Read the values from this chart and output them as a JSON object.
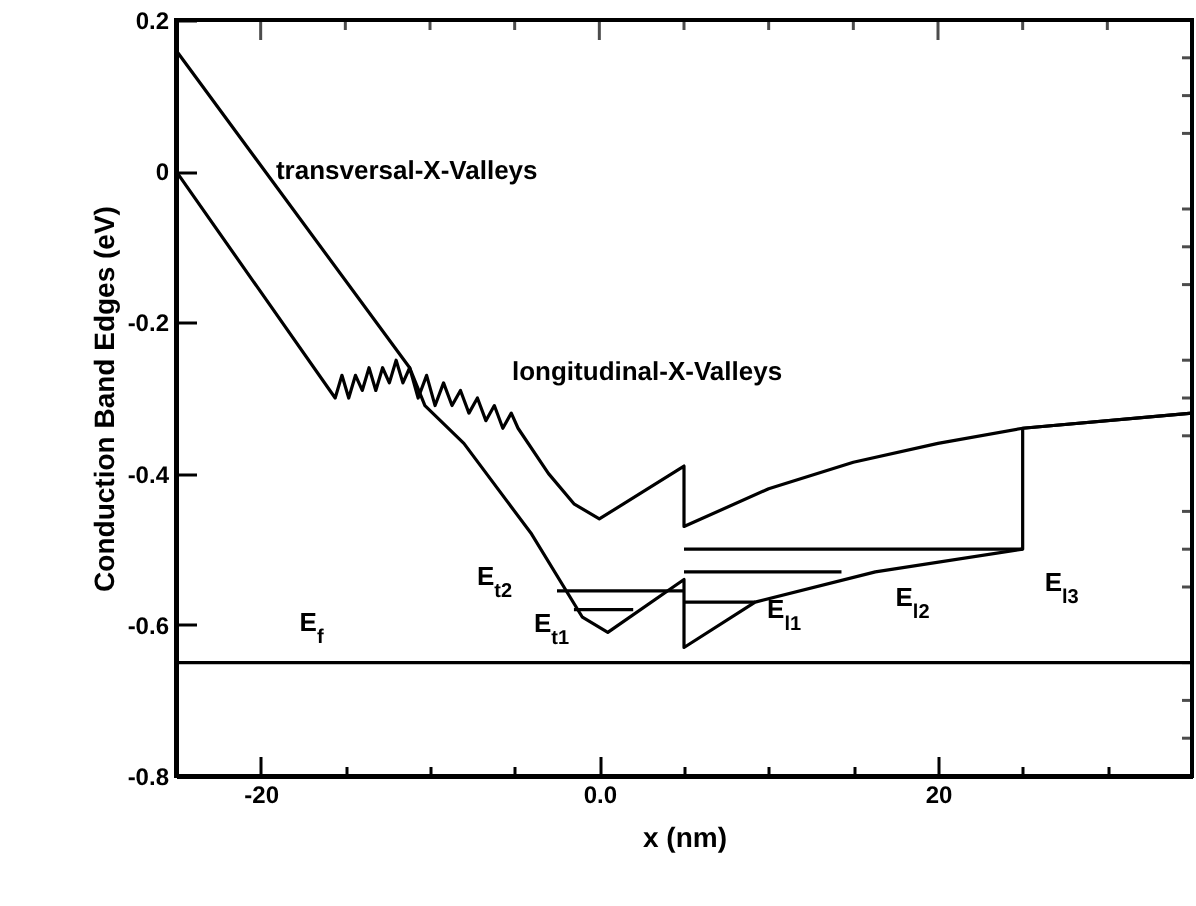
{
  "chart_data": {
    "type": "line",
    "xlabel": "x (nm)",
    "ylabel": "Conduction Band Edges (eV)",
    "xlim": [
      -25,
      35
    ],
    "ylim": [
      -0.8,
      0.2
    ],
    "xticks": [
      {
        "value": -25,
        "label": null
      },
      {
        "value": -20,
        "label": "-20"
      },
      {
        "value": -15,
        "label": null
      },
      {
        "value": -10,
        "label": null
      },
      {
        "value": -5,
        "label": null
      },
      {
        "value": 0,
        "label": "0.0"
      },
      {
        "value": 5,
        "label": null
      },
      {
        "value": 10,
        "label": null
      },
      {
        "value": 15,
        "label": null
      },
      {
        "value": 20,
        "label": "20"
      },
      {
        "value": 25,
        "label": null
      },
      {
        "value": 30,
        "label": null
      }
    ],
    "yticks": [
      {
        "value": -0.8,
        "label": "-0.8"
      },
      {
        "value": -0.75,
        "label": null
      },
      {
        "value": -0.7,
        "label": null
      },
      {
        "value": -0.65,
        "label": null
      },
      {
        "value": -0.6,
        "label": "-0.6"
      },
      {
        "value": -0.55,
        "label": null
      },
      {
        "value": -0.5,
        "label": null
      },
      {
        "value": -0.45,
        "label": null
      },
      {
        "value": -0.4,
        "label": "-0.4"
      },
      {
        "value": -0.35,
        "label": null
      },
      {
        "value": -0.3,
        "label": null
      },
      {
        "value": -0.25,
        "label": null
      },
      {
        "value": -0.2,
        "label": "-0.2"
      },
      {
        "value": -0.15,
        "label": null
      },
      {
        "value": -0.1,
        "label": null
      },
      {
        "value": -0.05,
        "label": null
      },
      {
        "value": 0,
        "label": "0"
      },
      {
        "value": 0.05,
        "label": null
      },
      {
        "value": 0.1,
        "label": null
      },
      {
        "value": 0.15,
        "label": null
      },
      {
        "value": 0.2,
        "label": "0.2"
      }
    ],
    "grid": false,
    "line_style": "solid",
    "marker": "none",
    "series": [
      {
        "color": "#000000",
        "x": [
          -25,
          -11.2,
          -10.3,
          -8,
          -4,
          -1,
          0.5,
          5,
          5,
          9.2,
          16.3,
          25,
          25,
          35
        ],
        "values": [
          0.16,
          -0.26,
          -0.31,
          -0.36,
          -0.48,
          -0.59,
          -0.61,
          -0.54,
          -0.63,
          -0.57,
          -0.53,
          -0.5,
          -0.34,
          -0.32
        ]
      },
      {
        "color": "#000000",
        "x": [
          -25,
          -15.6,
          -15.2,
          -14.8,
          -14.4,
          -14.0,
          -13.6,
          -13.2,
          -12.8,
          -12.4,
          -12.0,
          -11.6,
          -11.2,
          -10.7,
          -10.2,
          -9.7,
          -9.2,
          -8.7,
          -8.2,
          -7.7,
          -7.2,
          -6.7,
          -6.2,
          -5.7,
          -5.2,
          -4.8,
          -3,
          -1.5,
          0,
          5,
          5,
          10,
          15,
          20,
          25,
          35
        ],
        "values": [
          0,
          -0.3,
          -0.27,
          -0.3,
          -0.27,
          -0.29,
          -0.26,
          -0.29,
          -0.26,
          -0.28,
          -0.25,
          -0.28,
          -0.26,
          -0.3,
          -0.27,
          -0.31,
          -0.28,
          -0.31,
          -0.29,
          -0.32,
          -0.3,
          -0.33,
          -0.31,
          -0.34,
          -0.32,
          -0.34,
          -0.4,
          -0.44,
          -0.46,
          -0.39,
          -0.47,
          -0.42,
          -0.385,
          -0.36,
          -0.34,
          -0.32
        ]
      },
      {
        "color": "#000000",
        "x": [
          -2.5,
          5
        ],
        "values": [
          -0.555,
          -0.555
        ]
      },
      {
        "color": "#000000",
        "x": [
          -1.5,
          2
        ],
        "values": [
          -0.58,
          -0.58
        ]
      },
      {
        "color": "#000000",
        "x": [
          5,
          9.2
        ],
        "values": [
          -0.57,
          -0.57
        ]
      },
      {
        "color": "#000000",
        "x": [
          5,
          14.3
        ],
        "values": [
          -0.53,
          -0.53
        ]
      },
      {
        "color": "#000000",
        "x": [
          5,
          25
        ],
        "values": [
          -0.5,
          -0.5
        ]
      }
    ],
    "ref_lines": [
      {
        "axis": "y",
        "value": -0.65,
        "color": "#000000"
      }
    ],
    "annotations": [
      {
        "text": "transversal-X-Valleys",
        "x": -19.1,
        "y": 0.0
      },
      "longitudinal-X-Valleys",
      {
        "text": "E$_{f}$",
        "x": -17.7,
        "y": -0.65
      },
      {
        "text": "E$_{t2}$",
        "x": -2.5,
        "y": -0.555
      },
      {
        "text": "E$_{t1}$",
        "x": -1.5,
        "y": -0.58
      },
      {
        "text": "E$_{l1}$",
        "x": 9.2,
        "y": -0.57
      },
      {
        "text": "E$_{l2}$",
        "x": 14.3,
        "y": -0.53
      },
      {
        "text": "E$_{l3}$",
        "x": 25,
        "y": -0.5
      }
    ]
  }
}
